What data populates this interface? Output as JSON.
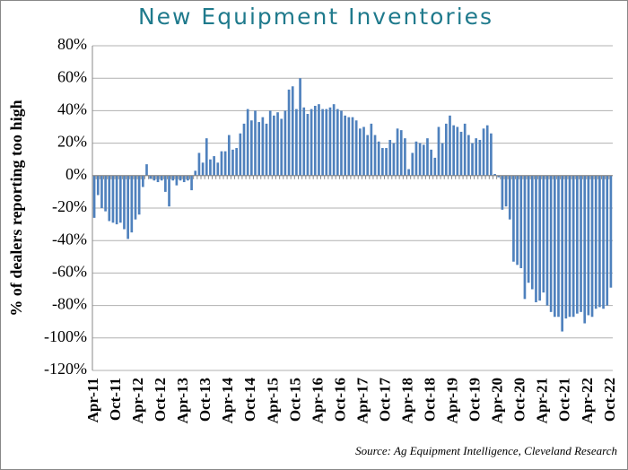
{
  "chart_data": {
    "type": "bar",
    "title": "New Equipment Inventories",
    "y_label": "% of dealers reporting too high",
    "source": "Source: Ag Equipment Intelligence, Cleveland Research",
    "color": "#4f81bd",
    "grid": true,
    "ylim": [
      -120,
      80
    ],
    "yticks": [
      {
        "value": -120,
        "label": "-120%"
      },
      {
        "value": -100,
        "label": "-100%"
      },
      {
        "value": -80,
        "label": "-80%"
      },
      {
        "value": -60,
        "label": "-60%"
      },
      {
        "value": -40,
        "label": "-40%"
      },
      {
        "value": -20,
        "label": "-20%"
      },
      {
        "value": 0,
        "label": "0%"
      },
      {
        "value": 20,
        "label": "20%"
      },
      {
        "value": 40,
        "label": "40%"
      },
      {
        "value": 60,
        "label": "60%"
      },
      {
        "value": 80,
        "label": "80%"
      }
    ],
    "categories": [
      "Apr-11",
      null,
      null,
      null,
      null,
      null,
      "Oct-11",
      null,
      null,
      null,
      null,
      null,
      "Apr-12",
      null,
      null,
      null,
      null,
      null,
      "Oct-12",
      null,
      null,
      null,
      null,
      null,
      "Apr-13",
      null,
      null,
      null,
      null,
      null,
      "Oct-13",
      null,
      null,
      null,
      null,
      null,
      "Apr-14",
      null,
      null,
      null,
      null,
      null,
      "Oct-14",
      null,
      null,
      null,
      null,
      null,
      "Apr-15",
      null,
      null,
      null,
      null,
      null,
      "Oct-15",
      null,
      null,
      null,
      null,
      null,
      "Apr-16",
      null,
      null,
      null,
      null,
      null,
      "Oct-16",
      null,
      null,
      null,
      null,
      null,
      "Apr-17",
      null,
      null,
      null,
      null,
      null,
      "Oct-17",
      null,
      null,
      null,
      null,
      null,
      "Apr-18",
      null,
      null,
      null,
      null,
      null,
      "Oct-18",
      null,
      null,
      null,
      null,
      null,
      "Apr-19",
      null,
      null,
      null,
      null,
      null,
      "Oct-19",
      null,
      null,
      null,
      null,
      null,
      "Apr-20",
      null,
      null,
      null,
      null,
      null,
      "Oct-20",
      null,
      null,
      null,
      null,
      null,
      "Apr-21",
      null,
      null,
      null,
      null,
      null,
      "Oct-21",
      null,
      null,
      null,
      null,
      null,
      "Apr-22",
      null,
      null,
      null,
      null,
      null,
      "Oct-22"
    ],
    "values": [
      -26,
      -12,
      -20,
      -22,
      -28,
      -29,
      -30,
      -29,
      -33,
      -39,
      -35,
      -27,
      -24,
      -7,
      7,
      -2,
      -3,
      -4,
      -3,
      -10,
      -19,
      -3,
      -6,
      -3,
      -4,
      -3,
      -9,
      3,
      14,
      8,
      23,
      10,
      12,
      8,
      15,
      15,
      25,
      16,
      17,
      26,
      32,
      41,
      34,
      40,
      33,
      36,
      32,
      40,
      37,
      39,
      35,
      40,
      53,
      55,
      41,
      60,
      42,
      38,
      41,
      43,
      44,
      41,
      41,
      42,
      44,
      41,
      40,
      37,
      36,
      36,
      34,
      29,
      30,
      25,
      32,
      25,
      21,
      17,
      17,
      22,
      20,
      29,
      28,
      23,
      4,
      14,
      21,
      20,
      19,
      23,
      16,
      11,
      30,
      20,
      32,
      37,
      31,
      30,
      27,
      32,
      25,
      20,
      23,
      22,
      29,
      31,
      26,
      1,
      -1,
      -21,
      -19,
      -27,
      -53,
      -55,
      -57,
      -76,
      -66,
      -70,
      -78,
      -77,
      -72,
      -80,
      -84,
      -87,
      -87,
      -96,
      -88,
      -87,
      -87,
      -85,
      -84,
      -91,
      -86,
      -87,
      -82,
      -81,
      -82,
      -80,
      -69
    ]
  }
}
